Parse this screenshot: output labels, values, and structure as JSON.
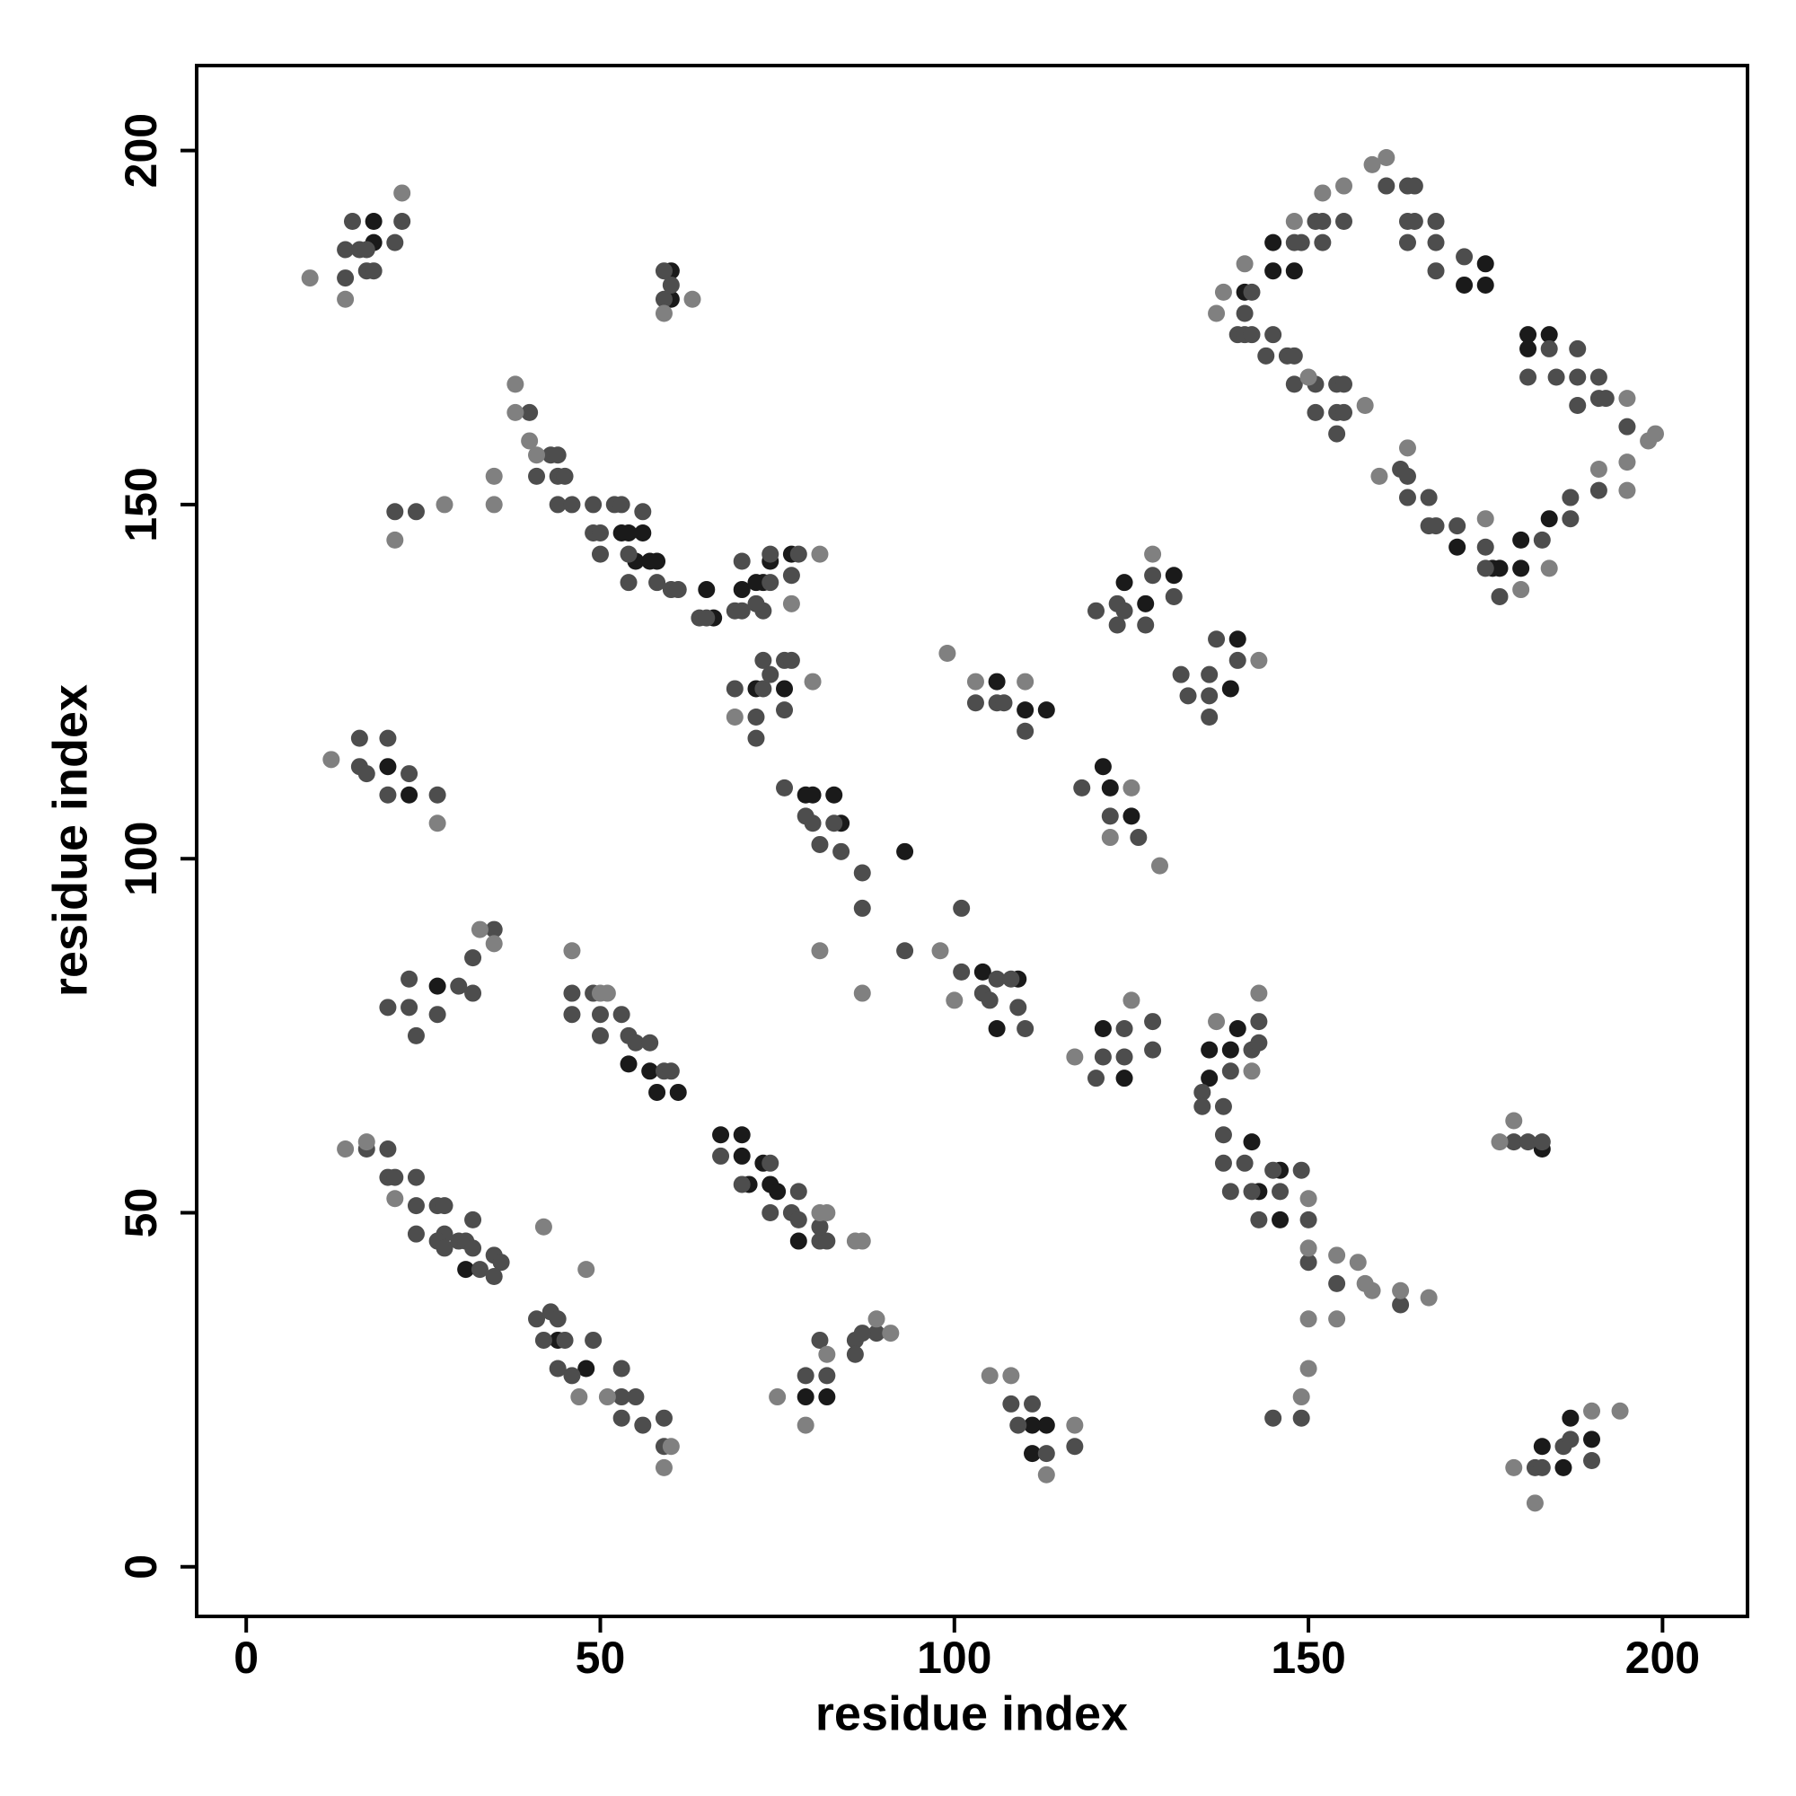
{
  "chart_data": {
    "type": "scatter",
    "xlabel": "residue index",
    "ylabel": "residue index",
    "xlim": [
      -7,
      212
    ],
    "ylim": [
      -7,
      212
    ],
    "xticks": [
      0,
      50,
      100,
      150,
      200
    ],
    "yticks": [
      0,
      50,
      100,
      150,
      200
    ],
    "series": [
      {
        "color": "#1a1a1a",
        "x": [
          18,
          18,
          54,
          56,
          55,
          57,
          58,
          53,
          65,
          66,
          70,
          72,
          73,
          74,
          77,
          76,
          72,
          60,
          60,
          141,
          145,
          148,
          145,
          172,
          175,
          175,
          181,
          184,
          181,
          177,
          176,
          180,
          180,
          184,
          171,
          106,
          113,
          110,
          124,
          127,
          131,
          140,
          139,
          20,
          23,
          79,
          80,
          83,
          84,
          93,
          121,
          122,
          125,
          106,
          109,
          104,
          121,
          124,
          27,
          54,
          57,
          58,
          61,
          136,
          136,
          139,
          140,
          142,
          143,
          146,
          146,
          67,
          70,
          70,
          71,
          73,
          74,
          75,
          78,
          183,
          31,
          111,
          113,
          111,
          183,
          186,
          187,
          190,
          48,
          44,
          79,
          82
        ],
        "values": [
          190,
          187,
          146,
          146,
          142,
          142,
          142,
          146,
          138,
          134,
          138,
          139,
          139,
          142,
          143,
          124,
          124,
          183,
          179,
          180,
          183,
          183,
          187,
          181,
          184,
          181,
          174,
          174,
          172,
          141,
          141,
          141,
          145,
          148,
          144,
          125,
          121,
          121,
          139,
          136,
          140,
          131,
          124,
          113,
          109,
          109,
          109,
          109,
          105,
          101,
          113,
          110,
          106,
          76,
          83,
          84,
          76,
          69,
          82,
          71,
          70,
          67,
          67,
          73,
          69,
          73,
          76,
          60,
          53,
          56,
          49,
          61,
          61,
          58,
          54,
          57,
          54,
          53,
          46,
          59,
          42,
          20,
          20,
          16,
          17,
          14,
          21,
          18,
          28,
          32,
          24,
          24
        ]
      },
      {
        "color": "#4d4d4d",
        "x": [
          14,
          14,
          15,
          16,
          17,
          17,
          18,
          21,
          22,
          59,
          59,
          60,
          40,
          43,
          44,
          44,
          41,
          45,
          44,
          46,
          49,
          52,
          53,
          49,
          50,
          56,
          50,
          54,
          54,
          58,
          60,
          61,
          24,
          21,
          64,
          65,
          69,
          70,
          70,
          74,
          74,
          73,
          78,
          77,
          72,
          69,
          72,
          72,
          73,
          73,
          74,
          76,
          77,
          76,
          141,
          142,
          149,
          151,
          152,
          152,
          155,
          161,
          164,
          165,
          165,
          164,
          164,
          168,
          168,
          168,
          172,
          140,
          141,
          142,
          144,
          145,
          147,
          148,
          148,
          151,
          151,
          154,
          154,
          155,
          154,
          155,
          184,
          185,
          188,
          188,
          188,
          191,
          191,
          192,
          195,
          181,
          163,
          164,
          164,
          167,
          167,
          168,
          171,
          175,
          175,
          177,
          183,
          187,
          187,
          191,
          148,
          103,
          106,
          107,
          110,
          120,
          123,
          123,
          124,
          127,
          128,
          131,
          132,
          133,
          136,
          136,
          136,
          137,
          140,
          16,
          16,
          17,
          20,
          20,
          23,
          27,
          76,
          79,
          80,
          83,
          81,
          84,
          87,
          87,
          118,
          122,
          126,
          93,
          101,
          101,
          104,
          105,
          106,
          108,
          109,
          110,
          120,
          121,
          124,
          124,
          128,
          128,
          20,
          23,
          23,
          24,
          27,
          30,
          32,
          32,
          35,
          46,
          46,
          49,
          50,
          50,
          53,
          54,
          55,
          57,
          59,
          60,
          135,
          135,
          139,
          142,
          143,
          143,
          138,
          138,
          138,
          141,
          139,
          142,
          145,
          146,
          149,
          150,
          150,
          154,
          163,
          149,
          145,
          143,
          179,
          181,
          183,
          17,
          20,
          20,
          21,
          24,
          24,
          24,
          27,
          28,
          28,
          27,
          28,
          30,
          31,
          32,
          32,
          33,
          35,
          36,
          35,
          67,
          74,
          70,
          78,
          74,
          77,
          78,
          81,
          82,
          81,
          41,
          43,
          44,
          42,
          45,
          49,
          44,
          46,
          53,
          53,
          55,
          53,
          56,
          59,
          59,
          79,
          82,
          81,
          86,
          86,
          89,
          87,
          108,
          109,
          111,
          113,
          117,
          182,
          183,
          186,
          187,
          190
        ],
        "values": [
          186,
          182,
          190,
          186,
          186,
          183,
          183,
          187,
          190,
          183,
          179,
          181,
          163,
          157,
          157,
          154,
          154,
          154,
          150,
          150,
          150,
          150,
          150,
          146,
          146,
          149,
          143,
          143,
          139,
          139,
          138,
          138,
          149,
          149,
          134,
          134,
          135,
          135,
          142,
          139,
          143,
          135,
          143,
          140,
          136,
          124,
          120,
          117,
          128,
          124,
          126,
          128,
          128,
          121,
          177,
          180,
          187,
          190,
          187,
          190,
          190,
          195,
          195,
          195,
          190,
          190,
          187,
          190,
          187,
          183,
          185,
          174,
          174,
          174,
          171,
          174,
          171,
          167,
          171,
          167,
          163,
          167,
          163,
          163,
          160,
          167,
          172,
          168,
          172,
          168,
          164,
          168,
          165,
          165,
          161,
          168,
          155,
          154,
          151,
          151,
          147,
          147,
          147,
          144,
          141,
          137,
          145,
          148,
          151,
          152,
          187,
          122,
          122,
          122,
          118,
          135,
          136,
          133,
          135,
          133,
          140,
          137,
          126,
          123,
          126,
          123,
          120,
          131,
          128,
          117,
          113,
          112,
          117,
          109,
          112,
          109,
          110,
          106,
          105,
          105,
          102,
          101,
          98,
          93,
          110,
          106,
          103,
          87,
          93,
          84,
          81,
          80,
          83,
          83,
          79,
          76,
          69,
          72,
          76,
          72,
          77,
          73,
          79,
          83,
          79,
          75,
          78,
          82,
          86,
          81,
          90,
          81,
          78,
          81,
          78,
          75,
          78,
          75,
          74,
          74,
          70,
          70,
          67,
          65,
          70,
          73,
          77,
          74,
          65,
          61,
          57,
          57,
          53,
          53,
          56,
          53,
          56,
          49,
          43,
          40,
          37,
          21,
          21,
          49,
          60,
          60,
          60,
          59,
          59,
          55,
          55,
          55,
          51,
          47,
          51,
          51,
          47,
          46,
          45,
          46,
          46,
          49,
          45,
          42,
          44,
          43,
          41,
          58,
          57,
          54,
          53,
          50,
          50,
          49,
          46,
          46,
          48,
          35,
          36,
          35,
          32,
          32,
          32,
          28,
          27,
          28,
          24,
          24,
          21,
          20,
          21,
          17,
          27,
          27,
          32,
          32,
          30,
          33,
          33,
          23,
          20,
          23,
          16,
          17,
          14,
          14,
          17,
          18,
          15
        ]
      },
      {
        "color": "#808080",
        "x": [
          9,
          14,
          22,
          59,
          63,
          38,
          38,
          40,
          41,
          35,
          35,
          28,
          21,
          81,
          77,
          69,
          80,
          99,
          103,
          110,
          128,
          143,
          12,
          27,
          87,
          81,
          129,
          125,
          122,
          100,
          98,
          125,
          117,
          33,
          35,
          46,
          50,
          51,
          137,
          143,
          142,
          150,
          150,
          154,
          157,
          158,
          159,
          163,
          167,
          150,
          154,
          150,
          149,
          179,
          177,
          14,
          17,
          21,
          42,
          48,
          81,
          82,
          86,
          87,
          75,
          79,
          82,
          89,
          91,
          105,
          108,
          117,
          113,
          179,
          182,
          194,
          190,
          59,
          60,
          47,
          51,
          159,
          161,
          155,
          152,
          148,
          137,
          138,
          141,
          195,
          198,
          199,
          195,
          195,
          191,
          180,
          175,
          160,
          164,
          184,
          158,
          150
        ],
        "values": [
          182,
          179,
          194,
          177,
          179,
          167,
          163,
          159,
          157,
          154,
          150,
          150,
          145,
          143,
          136,
          120,
          125,
          129,
          125,
          125,
          143,
          128,
          114,
          105,
          81,
          87,
          99,
          110,
          103,
          80,
          87,
          80,
          72,
          90,
          88,
          87,
          81,
          81,
          77,
          81,
          70,
          52,
          45,
          44,
          43,
          40,
          39,
          39,
          38,
          35,
          35,
          28,
          24,
          63,
          60,
          59,
          60,
          52,
          48,
          42,
          50,
          50,
          46,
          46,
          24,
          20,
          30,
          35,
          33,
          27,
          27,
          20,
          13,
          14,
          9,
          22,
          22,
          14,
          17,
          24,
          24,
          198,
          199,
          195,
          194,
          190,
          177,
          180,
          184,
          165,
          159,
          160,
          156,
          152,
          155,
          138,
          148,
          154,
          158,
          141,
          164,
          168
        ]
      }
    ]
  }
}
